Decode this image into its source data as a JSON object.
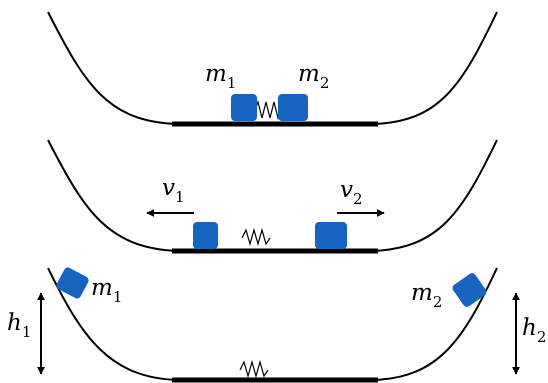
{
  "colors": {
    "block": "#1565C0",
    "ink": "#000000",
    "background": "#ffffff"
  },
  "panel1": {
    "left_mass": {
      "symbol": "m",
      "subscript": "1"
    },
    "right_mass": {
      "symbol": "m",
      "subscript": "2"
    }
  },
  "panel2": {
    "left_velocity": {
      "symbol": "v",
      "subscript": "1"
    },
    "right_velocity": {
      "symbol": "v",
      "subscript": "2"
    }
  },
  "panel3": {
    "left_mass": {
      "symbol": "m",
      "subscript": "1"
    },
    "right_mass": {
      "symbol": "m",
      "subscript": "2"
    },
    "left_height": {
      "symbol": "h",
      "subscript": "1"
    },
    "right_height": {
      "symbol": "h",
      "subscript": "2"
    }
  }
}
